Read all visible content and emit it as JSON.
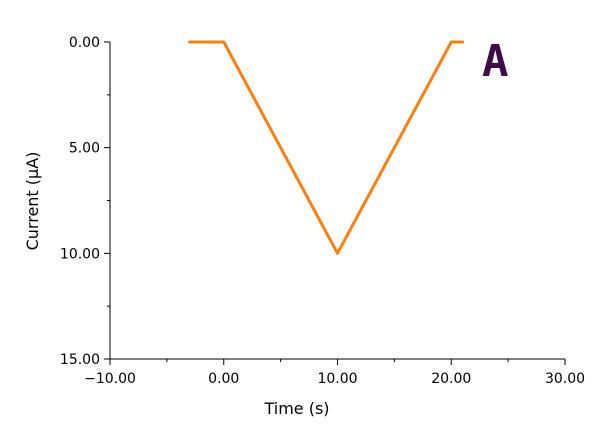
{
  "chart_data": {
    "type": "line",
    "title": "",
    "panel_label": "A",
    "xlabel": "Time (s)",
    "ylabel": "Current (μA)",
    "xlim": [
      -10,
      30
    ],
    "ylim": [
      0,
      15
    ],
    "y_axis_inverted": true,
    "x_ticks": [
      -10,
      0,
      10,
      20,
      30
    ],
    "x_tick_labels": [
      "−10.00",
      "0.00",
      "10.00",
      "20.00",
      "30.00"
    ],
    "y_ticks": [
      0,
      5,
      10,
      15
    ],
    "y_tick_labels": [
      "0.00",
      "5.00",
      "10.00",
      "15.00"
    ],
    "grid": false,
    "legend": "none",
    "series": [
      {
        "color": "#ff7f0e",
        "x": [
          -3.0,
          0.0,
          10.0,
          20.0,
          21.0
        ],
        "y": [
          0.0,
          0.0,
          10.0,
          0.0,
          0.0
        ]
      }
    ]
  }
}
